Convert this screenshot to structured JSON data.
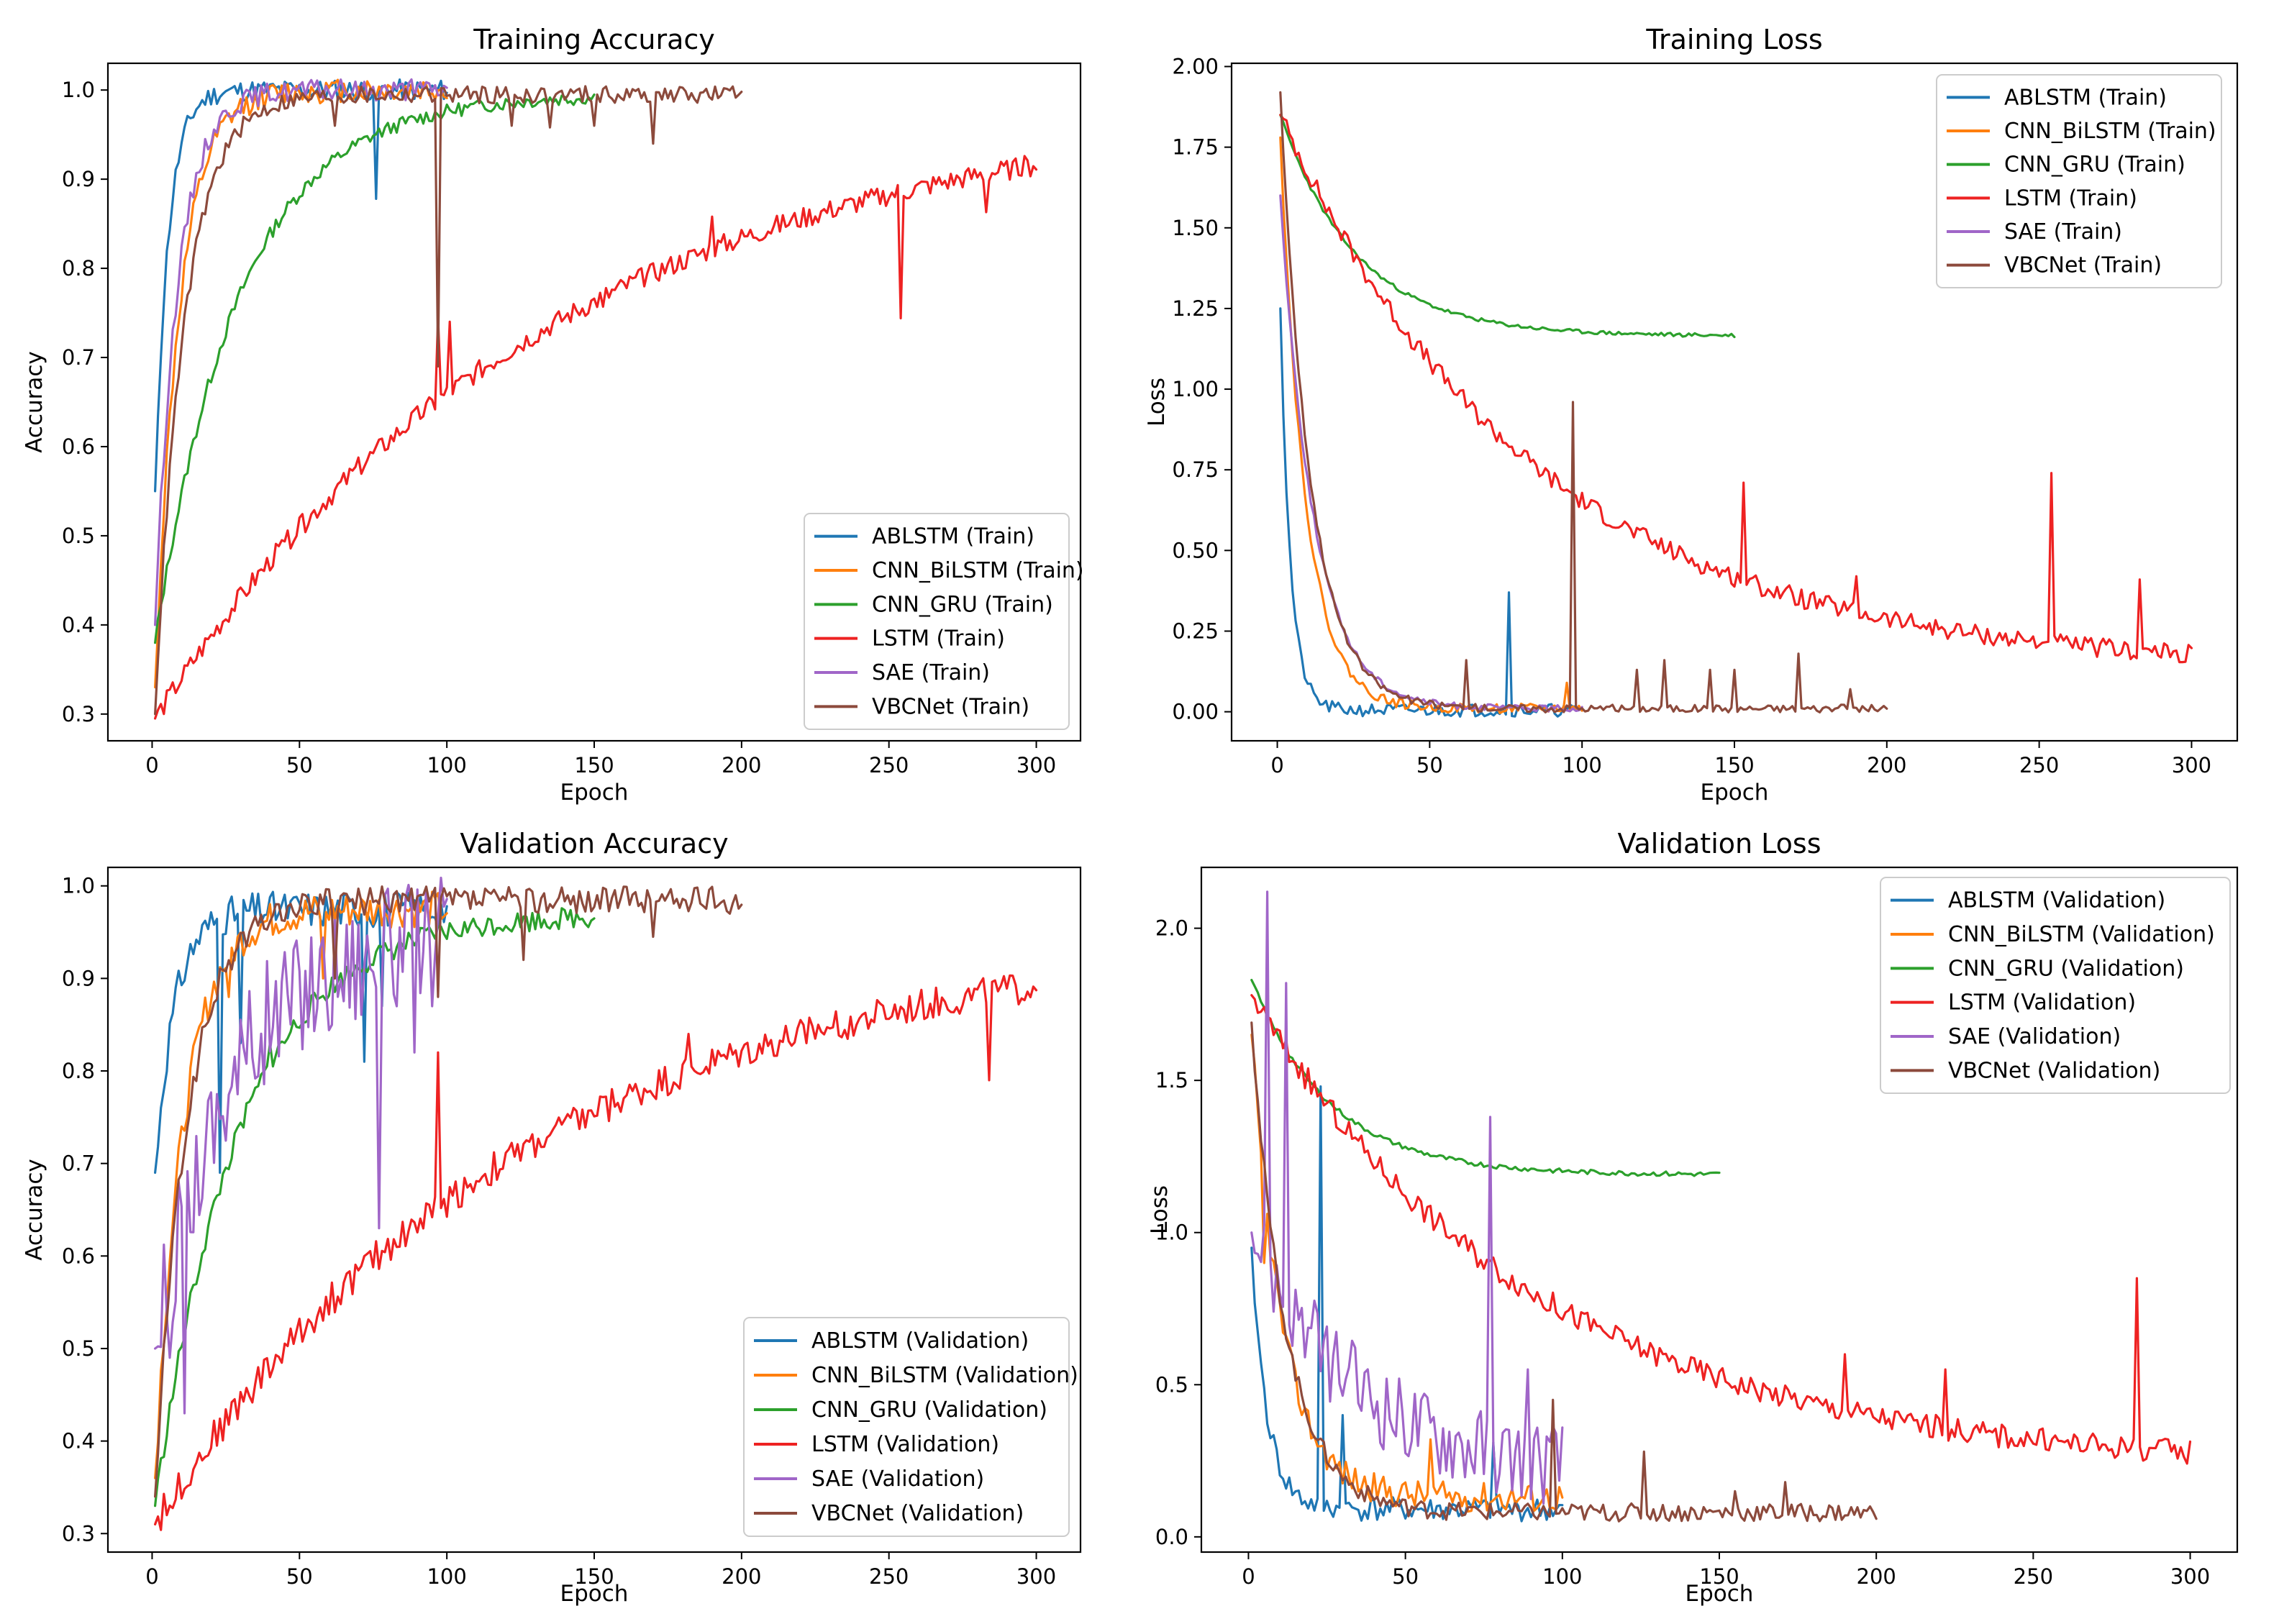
{
  "figure": {
    "colors": {
      "ABLSTM": "#1f77b4",
      "CNN_BiLSTM": "#ff7f0e",
      "CNN_GRU": "#2ca02c",
      "LSTM": "#ee2222",
      "SAE": "#a066c8",
      "VBCNet": "#8c4a3c"
    }
  },
  "chart_data": [
    {
      "type": "line",
      "title": "Training Accuracy",
      "xlabel": "Epoch",
      "ylabel": "Accuracy",
      "xlim": [
        -15,
        315
      ],
      "ylim": [
        0.27,
        1.03
      ],
      "xticks": [
        0,
        50,
        100,
        150,
        200,
        250,
        300
      ],
      "yticks": [
        0.3,
        0.4,
        0.5,
        0.6,
        0.7,
        0.8,
        0.9,
        1.0
      ],
      "legend_position": "bottom-right",
      "series": [
        {
          "name": "ABLSTM (Train)",
          "model": "ABLSTM",
          "epochs": 100,
          "start": 0.55,
          "end": 1.0,
          "rate": 0.22,
          "noise": 0.012,
          "seed": 11,
          "spikes": [
            [
              76,
              0.878
            ]
          ]
        },
        {
          "name": "CNN_BiLSTM (Train)",
          "model": "CNN_BiLSTM",
          "epochs": 100,
          "start": 0.33,
          "end": 1.0,
          "rate": 0.12,
          "noise": 0.014,
          "seed": 12,
          "spikes": []
        },
        {
          "name": "CNN_GRU (Train)",
          "model": "CNN_GRU",
          "epochs": 150,
          "start": 0.38,
          "end": 0.995,
          "rate": 0.035,
          "noise": 0.008,
          "seed": 13,
          "spikes": []
        },
        {
          "name": "LSTM (Train)",
          "model": "LSTM",
          "epochs": 300,
          "start": 0.295,
          "end": 0.99,
          "rate": 0.0075,
          "noise": 0.012,
          "seed": 14,
          "spikes": [
            [
              97,
              0.745
            ],
            [
              101,
              0.74
            ],
            [
              153,
              0.757
            ],
            [
              190,
              0.858
            ],
            [
              254,
              0.744
            ],
            [
              283,
              0.863
            ]
          ]
        },
        {
          "name": "SAE (Train)",
          "model": "SAE",
          "epochs": 100,
          "start": 0.4,
          "end": 1.0,
          "rate": 0.13,
          "noise": 0.012,
          "seed": 15,
          "spikes": []
        },
        {
          "name": "VBCNet (Train)",
          "model": "VBCNet",
          "epochs": 200,
          "start": 0.3,
          "end": 0.995,
          "rate": 0.1,
          "noise": 0.01,
          "seed": 16,
          "spikes": [
            [
              62,
              0.96
            ],
            [
              97,
              0.69
            ],
            [
              122,
              0.96
            ],
            [
              135,
              0.958
            ],
            [
              150,
              0.96
            ],
            [
              170,
              0.94
            ]
          ]
        }
      ]
    },
    {
      "type": "line",
      "title": "Training Loss",
      "xlabel": "Epoch",
      "ylabel": "Loss",
      "xlim": [
        -15,
        315
      ],
      "ylim": [
        -0.09,
        2.01
      ],
      "xticks": [
        0,
        50,
        100,
        150,
        200,
        250,
        300
      ],
      "yticks": [
        0.0,
        0.25,
        0.5,
        0.75,
        1.0,
        1.25,
        1.5,
        1.75,
        2.0
      ],
      "legend_position": "top-right",
      "series": [
        {
          "name": "ABLSTM (Train)",
          "model": "ABLSTM",
          "epochs": 100,
          "start": 1.25,
          "end": 0.005,
          "rate": 0.3,
          "noise": 0.02,
          "seed": 21,
          "spikes": [
            [
              76,
              0.37
            ]
          ]
        },
        {
          "name": "CNN_BiLSTM (Train)",
          "model": "CNN_BiLSTM",
          "epochs": 100,
          "start": 1.78,
          "end": 0.01,
          "rate": 0.12,
          "noise": 0.015,
          "seed": 22,
          "spikes": [
            [
              95,
              0.09
            ]
          ]
        },
        {
          "name": "CNN_GRU (Train)",
          "model": "CNN_GRU",
          "epochs": 150,
          "start": 1.85,
          "end": 1.165,
          "rate": 0.04,
          "noise": 0.006,
          "seed": 23,
          "spikes": []
        },
        {
          "name": "LSTM (Train)",
          "model": "LSTM",
          "epochs": 300,
          "start": 1.85,
          "end": 0.13,
          "rate": 0.012,
          "noise": 0.03,
          "seed": 24,
          "spikes": [
            [
              153,
              0.71
            ],
            [
              190,
              0.42
            ],
            [
              254,
              0.74
            ],
            [
              283,
              0.41
            ]
          ]
        },
        {
          "name": "SAE (Train)",
          "model": "SAE",
          "epochs": 100,
          "start": 1.6,
          "end": 0.01,
          "rate": 0.09,
          "noise": 0.01,
          "seed": 25,
          "spikes": []
        },
        {
          "name": "VBCNet (Train)",
          "model": "VBCNet",
          "epochs": 200,
          "start": 1.92,
          "end": 0.01,
          "rate": 0.1,
          "noise": 0.012,
          "seed": 26,
          "spikes": [
            [
              62,
              0.16
            ],
            [
              97,
              0.96
            ],
            [
              118,
              0.13
            ],
            [
              127,
              0.16
            ],
            [
              142,
              0.13
            ],
            [
              150,
              0.13
            ],
            [
              171,
              0.18
            ],
            [
              188,
              0.07
            ]
          ]
        }
      ]
    },
    {
      "type": "line",
      "title": "Validation Accuracy",
      "xlabel": "Epoch",
      "ylabel": "Accuracy",
      "xlim": [
        -15,
        315
      ],
      "ylim": [
        0.28,
        1.02
      ],
      "xticks": [
        0,
        50,
        100,
        150,
        200,
        250,
        300
      ],
      "yticks": [
        0.3,
        0.4,
        0.5,
        0.6,
        0.7,
        0.8,
        0.9,
        1.0
      ],
      "legend_position": "bottom-right",
      "series": [
        {
          "name": "ABLSTM (Validation)",
          "model": "ABLSTM",
          "epochs": 100,
          "start": 0.69,
          "end": 0.975,
          "rate": 0.15,
          "noise": 0.02,
          "seed": 31,
          "spikes": [
            [
              23,
              0.69
            ],
            [
              30,
              0.83
            ],
            [
              72,
              0.81
            ],
            [
              78,
              0.87
            ]
          ]
        },
        {
          "name": "CNN_BiLSTM (Validation)",
          "model": "CNN_BiLSTM",
          "epochs": 100,
          "start": 0.36,
          "end": 0.975,
          "rate": 0.1,
          "noise": 0.02,
          "seed": 32,
          "spikes": [
            [
              26,
              0.88
            ],
            [
              58,
              0.9
            ]
          ]
        },
        {
          "name": "CNN_GRU (Validation)",
          "model": "CNN_GRU",
          "epochs": 150,
          "start": 0.33,
          "end": 0.97,
          "rate": 0.035,
          "noise": 0.012,
          "seed": 33,
          "spikes": [
            [
              40,
              0.83
            ]
          ]
        },
        {
          "name": "LSTM (Validation)",
          "model": "LSTM",
          "epochs": 300,
          "start": 0.31,
          "end": 0.95,
          "rate": 0.008,
          "noise": 0.018,
          "seed": 34,
          "spikes": [
            [
              97,
              0.82
            ],
            [
              182,
              0.84
            ],
            [
              222,
              0.83
            ],
            [
              284,
              0.79
            ]
          ]
        },
        {
          "name": "SAE (Validation)",
          "model": "SAE",
          "epochs": 100,
          "start": 0.5,
          "end": 0.95,
          "rate": 0.04,
          "noise": 0.07,
          "seed": 35,
          "spikes": [
            [
              6,
              0.49
            ],
            [
              11,
              0.43
            ],
            [
              77,
              0.63
            ],
            [
              89,
              0.82
            ]
          ]
        },
        {
          "name": "VBCNet (Validation)",
          "model": "VBCNet",
          "epochs": 200,
          "start": 0.34,
          "end": 0.985,
          "rate": 0.09,
          "noise": 0.015,
          "seed": 36,
          "spikes": [
            [
              62,
              0.9
            ],
            [
              97,
              0.88
            ],
            [
              126,
              0.92
            ],
            [
              170,
              0.945
            ]
          ]
        }
      ]
    },
    {
      "type": "line",
      "title": "Validation Loss",
      "xlabel": "Epoch",
      "ylabel": "Loss",
      "xlim": [
        -15,
        315
      ],
      "ylim": [
        -0.05,
        2.2
      ],
      "xticks": [
        0,
        50,
        100,
        150,
        200,
        250,
        300
      ],
      "yticks": [
        0.0,
        0.5,
        1.0,
        1.5,
        2.0
      ],
      "legend_position": "top-right",
      "series": [
        {
          "name": "ABLSTM (Validation)",
          "model": "ABLSTM",
          "epochs": 100,
          "start": 0.95,
          "end": 0.09,
          "rate": 0.2,
          "noise": 0.04,
          "seed": 41,
          "spikes": [
            [
              23,
              1.48
            ],
            [
              30,
              0.4
            ],
            [
              78,
              0.31
            ]
          ]
        },
        {
          "name": "CNN_BiLSTM (Validation)",
          "model": "CNN_BiLSTM",
          "epochs": 100,
          "start": 1.65,
          "end": 0.13,
          "rate": 0.1,
          "noise": 0.05,
          "seed": 42,
          "spikes": [
            [
              5,
              0.9
            ],
            [
              58,
              0.32
            ]
          ]
        },
        {
          "name": "CNN_GRU (Validation)",
          "model": "CNN_GRU",
          "epochs": 150,
          "start": 1.83,
          "end": 1.19,
          "rate": 0.04,
          "noise": 0.008,
          "seed": 43,
          "spikes": []
        },
        {
          "name": "LSTM (Validation)",
          "model": "LSTM",
          "epochs": 300,
          "start": 1.78,
          "end": 0.22,
          "rate": 0.011,
          "noise": 0.04,
          "seed": 44,
          "spikes": [
            [
              190,
              0.6
            ],
            [
              222,
              0.55
            ],
            [
              283,
              0.85
            ]
          ]
        },
        {
          "name": "SAE (Validation)",
          "model": "SAE",
          "epochs": 100,
          "start": 1.0,
          "end": 0.2,
          "rate": 0.03,
          "noise": 0.14,
          "seed": 45,
          "spikes": [
            [
              6,
              2.12
            ],
            [
              12,
              1.82
            ],
            [
              77,
              1.38
            ],
            [
              89,
              0.55
            ]
          ]
        },
        {
          "name": "VBCNet (Validation)",
          "model": "VBCNet",
          "epochs": 200,
          "start": 1.69,
          "end": 0.08,
          "rate": 0.09,
          "noise": 0.03,
          "seed": 46,
          "spikes": [
            [
              97,
              0.45
            ],
            [
              126,
              0.28
            ],
            [
              155,
              0.15
            ],
            [
              171,
              0.18
            ]
          ]
        }
      ]
    }
  ]
}
